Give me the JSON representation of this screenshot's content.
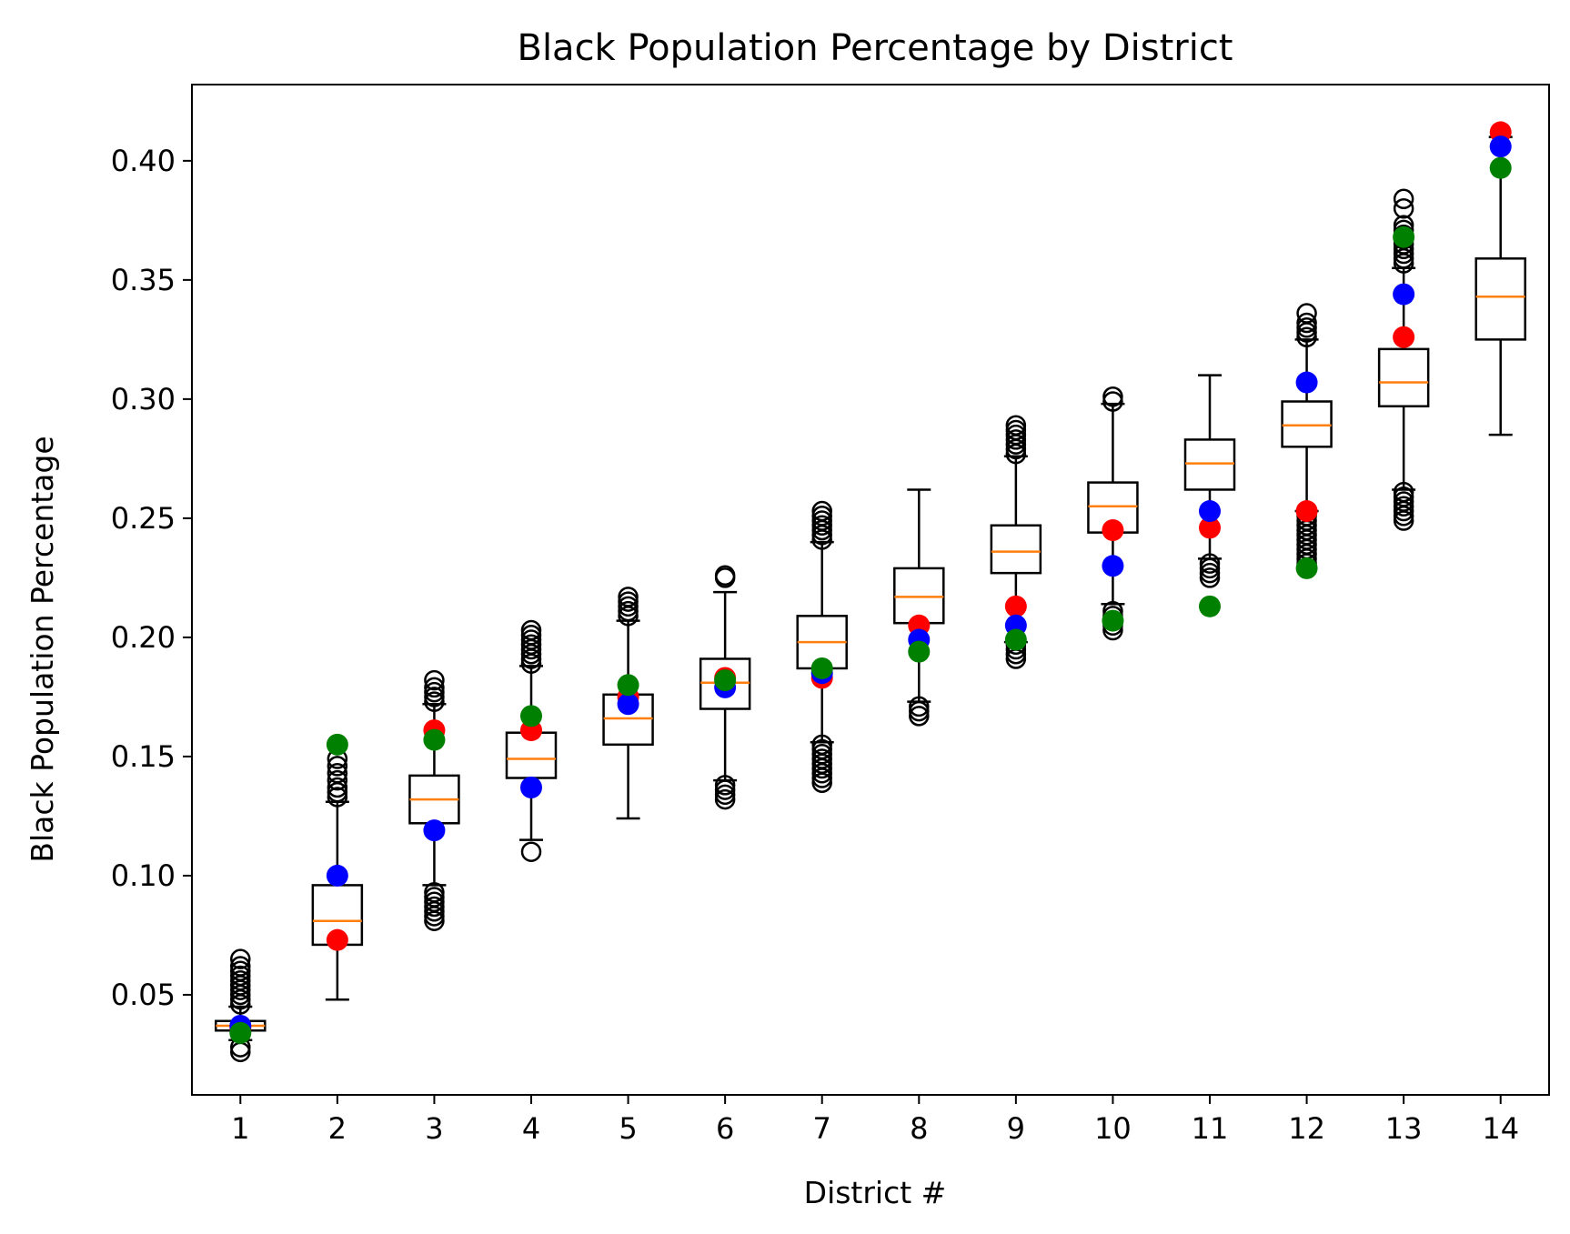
{
  "chart_data": {
    "type": "box",
    "title": "Black Population Percentage by District",
    "xlabel": "District #",
    "ylabel": "Black Population Percentage",
    "categories": [
      "1",
      "2",
      "3",
      "4",
      "5",
      "6",
      "7",
      "8",
      "9",
      "10",
      "11",
      "12",
      "13",
      "14"
    ],
    "ylim": [
      0.008,
      0.432
    ],
    "yticks": [
      0.05,
      0.1,
      0.15,
      0.2,
      0.25,
      0.3,
      0.35,
      0.4
    ],
    "ytick_labels": [
      "0.05",
      "0.10",
      "0.15",
      "0.20",
      "0.25",
      "0.30",
      "0.35",
      "0.40"
    ],
    "grid": false,
    "colors": {
      "box": "#000000",
      "median": "#ff7f0e",
      "highlight_red": "#ff0000",
      "highlight_blue": "#0000ff",
      "highlight_green": "#008000"
    },
    "boxes": [
      {
        "district": "1",
        "whislo": 0.031,
        "q1": 0.035,
        "med": 0.037,
        "q3": 0.039,
        "whishi": 0.045,
        "fliers": [
          0.026,
          0.028,
          0.046,
          0.048,
          0.05,
          0.052,
          0.054,
          0.056,
          0.058,
          0.06,
          0.062,
          0.065
        ]
      },
      {
        "district": "2",
        "whislo": 0.048,
        "q1": 0.071,
        "med": 0.081,
        "q3": 0.096,
        "whishi": 0.131,
        "fliers": [
          0.133,
          0.135,
          0.137,
          0.14,
          0.143,
          0.146,
          0.149
        ]
      },
      {
        "district": "3",
        "whislo": 0.096,
        "q1": 0.122,
        "med": 0.132,
        "q3": 0.142,
        "whishi": 0.172,
        "fliers": [
          0.081,
          0.083,
          0.085,
          0.087,
          0.089,
          0.091,
          0.093,
          0.173,
          0.175,
          0.177,
          0.179,
          0.182
        ]
      },
      {
        "district": "4",
        "whislo": 0.115,
        "q1": 0.141,
        "med": 0.149,
        "q3": 0.16,
        "whishi": 0.188,
        "fliers": [
          0.11,
          0.189,
          0.191,
          0.193,
          0.195,
          0.197,
          0.199,
          0.201,
          0.203
        ]
      },
      {
        "district": "5",
        "whislo": 0.124,
        "q1": 0.155,
        "med": 0.166,
        "q3": 0.176,
        "whishi": 0.207,
        "fliers": [
          0.209,
          0.211,
          0.213,
          0.215,
          0.217
        ]
      },
      {
        "district": "6",
        "whislo": 0.14,
        "q1": 0.17,
        "med": 0.181,
        "q3": 0.191,
        "whishi": 0.219,
        "fliers": [
          0.132,
          0.134,
          0.136,
          0.138,
          0.225,
          0.226
        ]
      },
      {
        "district": "7",
        "whislo": 0.156,
        "q1": 0.187,
        "med": 0.198,
        "q3": 0.209,
        "whishi": 0.24,
        "fliers": [
          0.139,
          0.141,
          0.143,
          0.145,
          0.147,
          0.149,
          0.151,
          0.153,
          0.155,
          0.241,
          0.243,
          0.245,
          0.247,
          0.249,
          0.251,
          0.253
        ]
      },
      {
        "district": "8",
        "whislo": 0.173,
        "q1": 0.206,
        "med": 0.217,
        "q3": 0.229,
        "whishi": 0.262,
        "fliers": [
          0.167,
          0.169,
          0.171
        ]
      },
      {
        "district": "9",
        "whislo": 0.198,
        "q1": 0.227,
        "med": 0.236,
        "q3": 0.247,
        "whishi": 0.276,
        "fliers": [
          0.191,
          0.193,
          0.195,
          0.197,
          0.277,
          0.279,
          0.281,
          0.283,
          0.285,
          0.287,
          0.289
        ]
      },
      {
        "district": "10",
        "whislo": 0.214,
        "q1": 0.244,
        "med": 0.255,
        "q3": 0.265,
        "whishi": 0.298,
        "fliers": [
          0.203,
          0.205,
          0.207,
          0.209,
          0.211,
          0.299,
          0.301
        ]
      },
      {
        "district": "11",
        "whislo": 0.233,
        "q1": 0.262,
        "med": 0.273,
        "q3": 0.283,
        "whishi": 0.31,
        "fliers": [
          0.225,
          0.227,
          0.229,
          0.231
        ]
      },
      {
        "district": "12",
        "whislo": 0.253,
        "q1": 0.28,
        "med": 0.289,
        "q3": 0.299,
        "whishi": 0.325,
        "fliers": [
          0.229,
          0.231,
          0.233,
          0.235,
          0.237,
          0.239,
          0.241,
          0.243,
          0.245,
          0.247,
          0.249,
          0.251,
          0.326,
          0.328,
          0.33,
          0.332,
          0.336
        ]
      },
      {
        "district": "13",
        "whislo": 0.262,
        "q1": 0.297,
        "med": 0.307,
        "q3": 0.321,
        "whishi": 0.355,
        "fliers": [
          0.249,
          0.251,
          0.253,
          0.255,
          0.257,
          0.259,
          0.261,
          0.357,
          0.359,
          0.361,
          0.363,
          0.365,
          0.367,
          0.369,
          0.371,
          0.373,
          0.38,
          0.384
        ]
      },
      {
        "district": "14",
        "whislo": 0.285,
        "q1": 0.325,
        "med": 0.343,
        "q3": 0.359,
        "whishi": 0.41,
        "fliers": []
      }
    ],
    "highlight_points": [
      {
        "district": "1",
        "red": 0.036,
        "blue": 0.037,
        "green": 0.034
      },
      {
        "district": "2",
        "red": 0.073,
        "blue": 0.1,
        "green": 0.155
      },
      {
        "district": "3",
        "red": 0.161,
        "blue": 0.119,
        "green": 0.157
      },
      {
        "district": "4",
        "red": 0.161,
        "blue": 0.137,
        "green": 0.167
      },
      {
        "district": "5",
        "red": 0.175,
        "blue": 0.172,
        "green": 0.18
      },
      {
        "district": "6",
        "red": 0.183,
        "blue": 0.179,
        "green": 0.182
      },
      {
        "district": "7",
        "red": 0.183,
        "blue": 0.185,
        "green": 0.187
      },
      {
        "district": "8",
        "red": 0.205,
        "blue": 0.199,
        "green": 0.194
      },
      {
        "district": "9",
        "red": 0.213,
        "blue": 0.205,
        "green": 0.199
      },
      {
        "district": "10",
        "red": 0.245,
        "blue": 0.23,
        "green": 0.207
      },
      {
        "district": "11",
        "red": 0.246,
        "blue": 0.253,
        "green": 0.213
      },
      {
        "district": "12",
        "red": 0.253,
        "blue": 0.307,
        "green": 0.229
      },
      {
        "district": "13",
        "red": 0.326,
        "blue": 0.344,
        "green": 0.368
      },
      {
        "district": "14",
        "red": 0.412,
        "blue": 0.406,
        "green": 0.397
      }
    ]
  }
}
